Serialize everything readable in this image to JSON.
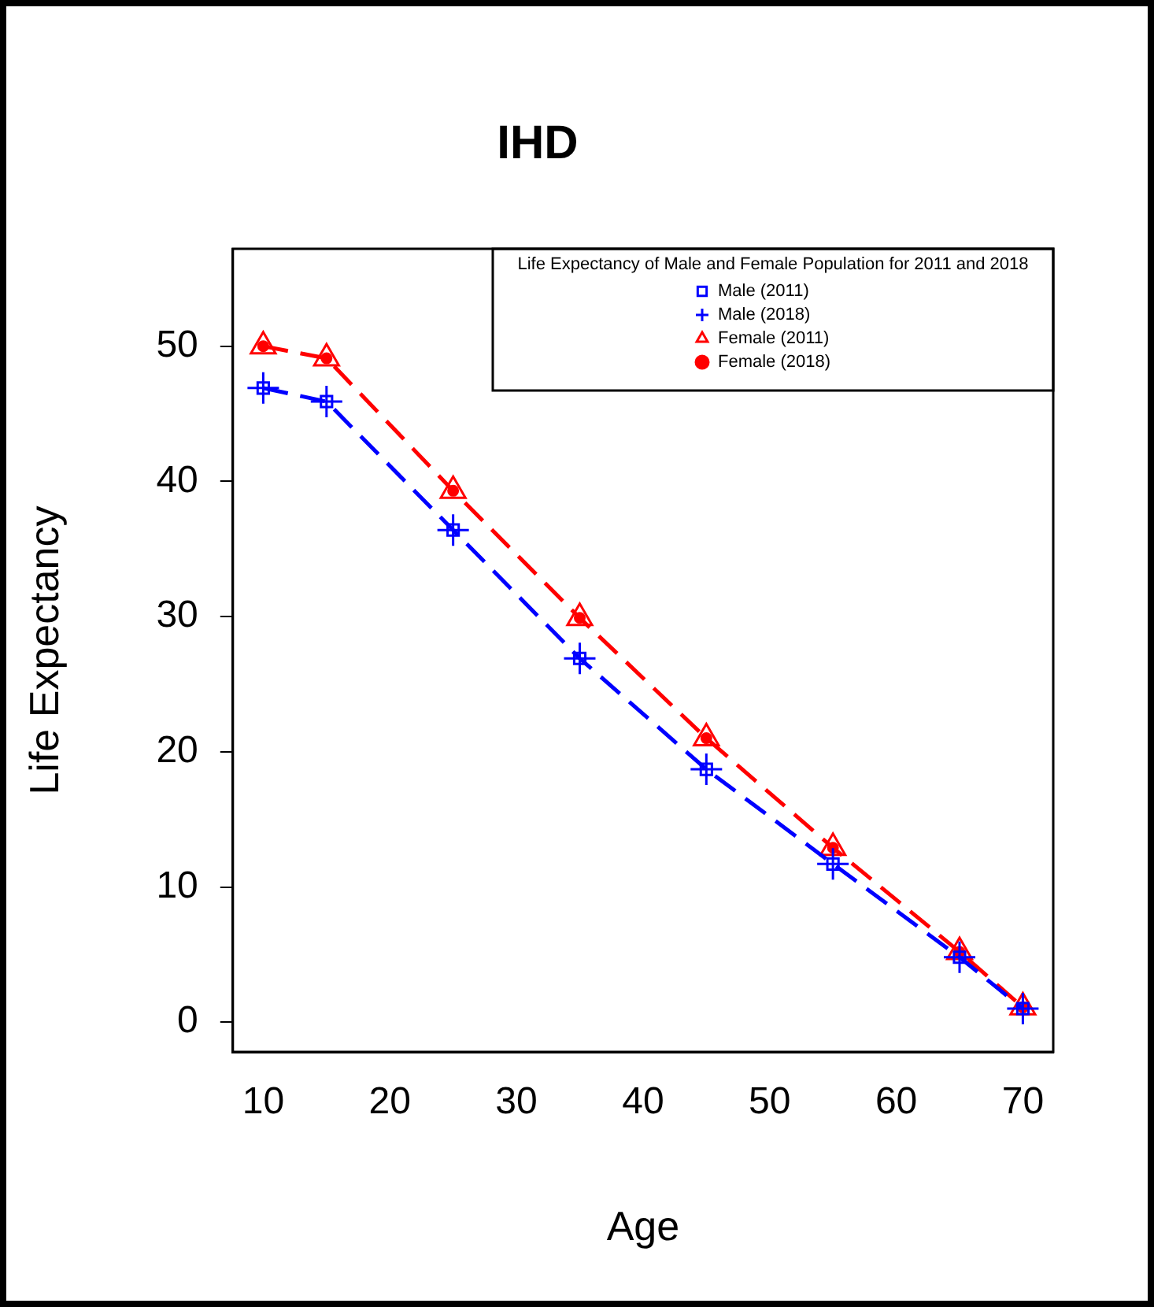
{
  "chart_data": {
    "type": "line",
    "title": "IHD",
    "xlabel": "Age",
    "ylabel": "Life Expectancy",
    "legend_title": "Life Expectancy of Male and Female Population for 2011 and 2018",
    "x": [
      10,
      15,
      25,
      35,
      45,
      55,
      65,
      70
    ],
    "series": [
      {
        "name": "Male (2011)",
        "type": "scatter",
        "color": "#0000ff",
        "marker": "square",
        "values": [
          46.9,
          45.9,
          36.4,
          26.9,
          18.7,
          11.7,
          4.8,
          1.0
        ]
      },
      {
        "name": "Male (2018)",
        "color": "#0000ff",
        "marker": "cross",
        "values": [
          46.9,
          45.9,
          36.4,
          26.9,
          18.7,
          11.7,
          4.8,
          1.0
        ]
      },
      {
        "name": "Female (2011)",
        "type": "scatter",
        "color": "#ff0000",
        "marker": "triangle",
        "values": [
          50.0,
          49.1,
          39.3,
          29.9,
          21.0,
          12.9,
          5.2,
          1.1
        ]
      },
      {
        "name": "Female (2018)",
        "color": "#ff0000",
        "marker": "circle",
        "values": [
          50.0,
          49.1,
          39.3,
          29.9,
          21.0,
          12.9,
          5.2,
          1.1
        ]
      }
    ],
    "xlim": [
      7.6,
      72.4
    ],
    "xticks": [
      10,
      20,
      30,
      40,
      50,
      60,
      70
    ],
    "ylim": [
      -2.2,
      57.2
    ],
    "yticks": [
      0,
      10,
      20,
      30,
      40,
      50
    ],
    "grid": false,
    "legend": "top right",
    "line_style": "dashed"
  }
}
